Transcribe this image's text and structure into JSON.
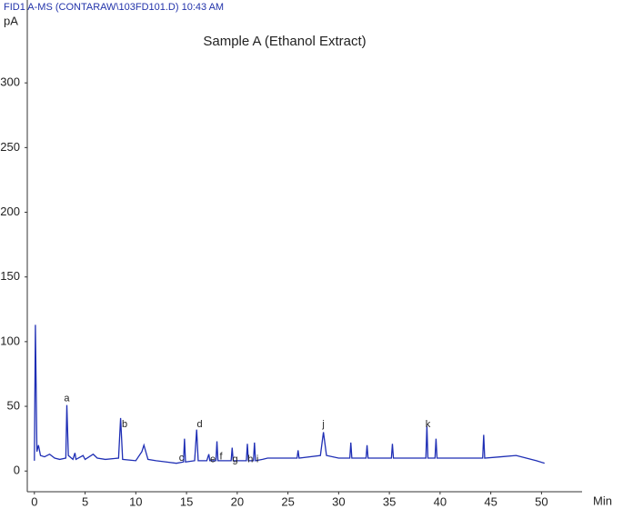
{
  "chart_data": {
    "type": "line",
    "header": "FID1 A-MS  (CONTARAW\\103FD101.D) 10:43 AM",
    "title": "Sample A (Ethanol Extract)",
    "y_label": "pA",
    "x_label": "Min",
    "xlim": [
      -0.7,
      54
    ],
    "xticks": [
      0,
      5,
      10,
      15,
      20,
      25,
      30,
      35,
      40,
      45,
      50
    ],
    "ylim": [
      -16,
      350
    ],
    "yticks": [
      0,
      50,
      100,
      150,
      200,
      250,
      300
    ],
    "grid": false,
    "series": [
      {
        "color": "#1f2fb5",
        "x": [
          0,
          0.1,
          0.25,
          0.4,
          0.6,
          1,
          1.5,
          2,
          2.5,
          3.1,
          3.2,
          3.35,
          3.8,
          4,
          4.1,
          4.8,
          5,
          5.8,
          6.2,
          7,
          8.3,
          8.5,
          8.7,
          10,
          10.6,
          10.8,
          11.2,
          12,
          13,
          14,
          14.7,
          14.8,
          14.9,
          15.8,
          16,
          16.15,
          17,
          17.2,
          17.3,
          17.9,
          18,
          18.1,
          19.4,
          19.5,
          19.6,
          20.9,
          21,
          21.1,
          21.6,
          21.7,
          21.8,
          22.5,
          23,
          25,
          25.9,
          26,
          26.1,
          28.2,
          28.5,
          28.8,
          30,
          31.1,
          31.2,
          31.3,
          32.7,
          32.8,
          32.9,
          35.2,
          35.3,
          35.4,
          38.6,
          38.7,
          38.8,
          39.5,
          39.6,
          39.7,
          42,
          44.2,
          44.3,
          44.4,
          46,
          47.5,
          48.5,
          49.5,
          50.3
        ],
        "values": [
          8,
          113,
          15,
          20,
          12,
          11,
          13,
          10,
          9,
          10,
          51,
          12,
          9,
          14,
          9,
          12,
          9,
          13,
          10,
          9,
          10,
          41,
          9,
          8,
          15,
          20,
          9,
          8,
          7,
          6,
          7,
          25,
          7,
          8,
          32,
          8,
          8,
          13,
          8,
          8,
          23,
          8,
          8,
          18,
          8,
          8,
          21,
          8,
          8,
          22,
          8,
          9,
          10,
          10,
          10,
          16,
          10,
          12,
          30,
          12,
          10,
          10,
          22,
          10,
          10,
          20,
          10,
          10,
          21,
          10,
          10,
          35,
          10,
          10,
          25,
          10,
          10,
          10,
          28,
          10,
          11,
          12,
          10,
          8,
          6
        ]
      }
    ],
    "annotations": [
      {
        "text": "a",
        "x": 3.2,
        "y": 56
      },
      {
        "text": "b",
        "x": 8.9,
        "y": 36
      },
      {
        "text": "c",
        "x": 14.5,
        "y": 10
      },
      {
        "text": "d",
        "x": 16.3,
        "y": 36
      },
      {
        "text": "e",
        "x": 17.6,
        "y": 9
      },
      {
        "text": "f",
        "x": 18.4,
        "y": 11
      },
      {
        "text": "g",
        "x": 19.8,
        "y": 9
      },
      {
        "text": "h",
        "x": 21.3,
        "y": 9
      },
      {
        "text": "i",
        "x": 22.0,
        "y": 9
      },
      {
        "text": "j",
        "x": 28.5,
        "y": 36
      },
      {
        "text": "k",
        "x": 38.8,
        "y": 36
      }
    ]
  }
}
